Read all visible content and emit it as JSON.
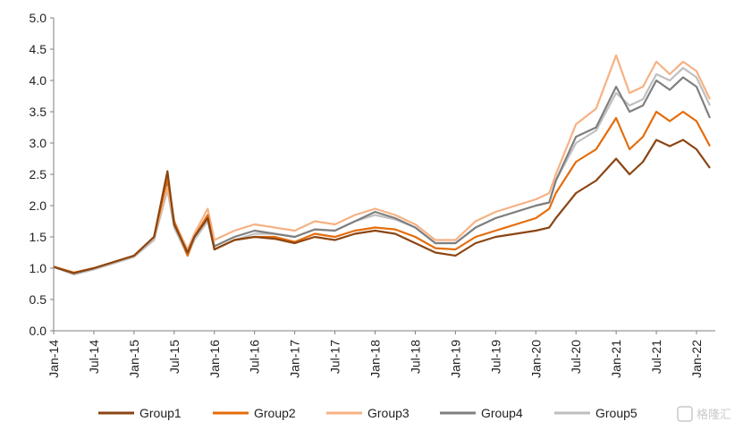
{
  "chart_data": {
    "type": "line",
    "title": "",
    "xlabel": "",
    "ylabel": "",
    "ylim": [
      0,
      5
    ],
    "yticks": [
      "0.0",
      "0.5",
      "1.0",
      "1.5",
      "2.0",
      "2.5",
      "3.0",
      "3.5",
      "4.0",
      "4.5",
      "5.0"
    ],
    "xticks": [
      "Jan-14",
      "Jul-14",
      "Jan-15",
      "Jul-15",
      "Jan-16",
      "Jul-16",
      "Jan-17",
      "Jul-17",
      "Jan-18",
      "Jul-18",
      "Jan-19",
      "Jul-19",
      "Jan-20",
      "Jul-20",
      "Jan-21",
      "Jul-21",
      "Jan-22"
    ],
    "grid": false,
    "legend": "bottom",
    "x": [
      "Jan-14",
      "Apr-14",
      "Jul-14",
      "Oct-14",
      "Jan-15",
      "Apr-15",
      "Jun-15",
      "Jul-15",
      "Sep-15",
      "Oct-15",
      "Dec-15",
      "Jan-16",
      "Apr-16",
      "Jul-16",
      "Oct-16",
      "Jan-17",
      "Apr-17",
      "Jul-17",
      "Oct-17",
      "Jan-18",
      "Apr-18",
      "Jul-18",
      "Oct-18",
      "Jan-19",
      "Apr-19",
      "Jul-19",
      "Oct-19",
      "Jan-20",
      "Mar-20",
      "Apr-20",
      "Jul-20",
      "Oct-20",
      "Jan-21",
      "Mar-21",
      "May-21",
      "Jul-21",
      "Sep-21",
      "Nov-21",
      "Jan-22",
      "Mar-22"
    ],
    "series": [
      {
        "name": "Group1",
        "color": "#8B4513",
        "values": [
          1.02,
          0.92,
          1.0,
          1.1,
          1.2,
          1.5,
          2.55,
          1.7,
          1.25,
          1.5,
          1.8,
          1.3,
          1.45,
          1.5,
          1.47,
          1.4,
          1.5,
          1.45,
          1.55,
          1.6,
          1.55,
          1.4,
          1.25,
          1.2,
          1.4,
          1.5,
          1.55,
          1.6,
          1.65,
          1.8,
          2.2,
          2.4,
          2.75,
          2.5,
          2.7,
          3.05,
          2.95,
          3.05,
          2.9,
          2.6
        ]
      },
      {
        "name": "Group2",
        "color": "#E46C0A",
        "values": [
          1.02,
          0.93,
          1.0,
          1.1,
          1.2,
          1.5,
          2.45,
          1.75,
          1.2,
          1.5,
          1.85,
          1.3,
          1.45,
          1.5,
          1.5,
          1.42,
          1.55,
          1.5,
          1.6,
          1.65,
          1.62,
          1.5,
          1.32,
          1.3,
          1.5,
          1.6,
          1.7,
          1.8,
          1.95,
          2.2,
          2.7,
          2.9,
          3.4,
          2.9,
          3.1,
          3.5,
          3.35,
          3.5,
          3.35,
          2.95
        ]
      },
      {
        "name": "Group3",
        "color": "#F6B183",
        "values": [
          1.03,
          0.93,
          1.0,
          1.1,
          1.2,
          1.5,
          2.3,
          1.75,
          1.3,
          1.55,
          1.95,
          1.45,
          1.6,
          1.7,
          1.65,
          1.6,
          1.75,
          1.7,
          1.85,
          1.95,
          1.85,
          1.7,
          1.45,
          1.45,
          1.75,
          1.9,
          2.0,
          2.1,
          2.2,
          2.5,
          3.3,
          3.55,
          4.4,
          3.8,
          3.9,
          4.3,
          4.1,
          4.3,
          4.15,
          3.7
        ]
      },
      {
        "name": "Group4",
        "color": "#7F7F7F",
        "values": [
          1.02,
          0.92,
          1.0,
          1.1,
          1.2,
          1.5,
          2.35,
          1.7,
          1.25,
          1.5,
          1.8,
          1.35,
          1.5,
          1.6,
          1.55,
          1.5,
          1.62,
          1.6,
          1.75,
          1.9,
          1.8,
          1.65,
          1.4,
          1.4,
          1.65,
          1.8,
          1.9,
          2.0,
          2.05,
          2.4,
          3.1,
          3.25,
          3.9,
          3.5,
          3.6,
          4.0,
          3.85,
          4.05,
          3.9,
          3.4
        ]
      },
      {
        "name": "Group5",
        "color": "#BFBFBF",
        "values": [
          1.02,
          0.9,
          0.98,
          1.08,
          1.18,
          1.45,
          2.25,
          1.65,
          1.2,
          1.45,
          1.75,
          1.3,
          1.45,
          1.55,
          1.55,
          1.5,
          1.62,
          1.6,
          1.75,
          1.85,
          1.78,
          1.65,
          1.4,
          1.4,
          1.65,
          1.8,
          1.9,
          2.0,
          2.05,
          2.4,
          3.0,
          3.2,
          3.8,
          3.6,
          3.7,
          4.1,
          4.0,
          4.2,
          4.05,
          3.6
        ]
      }
    ]
  },
  "watermark": "格隆汇"
}
